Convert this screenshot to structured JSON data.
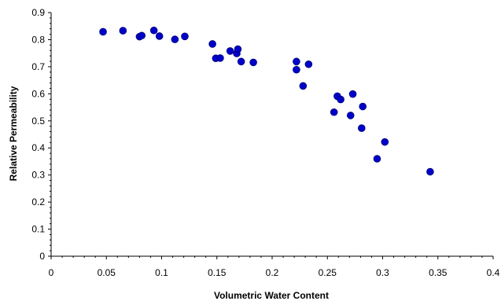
{
  "chart_data": {
    "type": "scatter",
    "title": "",
    "xlabel": "Volumetric Water Content",
    "ylabel": "Relative Permeability",
    "xlim": [
      0,
      0.4
    ],
    "ylim": [
      0,
      0.9
    ],
    "x_ticks": [
      0,
      0.05,
      0.1,
      0.15,
      0.2,
      0.25,
      0.3,
      0.35,
      0.4
    ],
    "x_tick_labels": [
      "0",
      "0.05",
      "0.1",
      "0.15",
      "0.2",
      "0.25",
      "0.3",
      "0.35",
      "0.4"
    ],
    "y_ticks": [
      0,
      0.1,
      0.2,
      0.3,
      0.4,
      0.5,
      0.6,
      0.7,
      0.8,
      0.9
    ],
    "y_tick_labels": [
      "0",
      "0.1",
      "0.2",
      "0.3",
      "0.4",
      "0.5",
      "0.6",
      "0.7",
      "0.8",
      "0.9"
    ],
    "grid": false,
    "legend": "none",
    "marker_color": "#0000cc",
    "marker_edge_color": "#000080",
    "series": [
      {
        "points": [
          [
            0.047,
            0.829
          ],
          [
            0.065,
            0.833
          ],
          [
            0.08,
            0.811
          ],
          [
            0.082,
            0.815
          ],
          [
            0.093,
            0.834
          ],
          [
            0.098,
            0.813
          ],
          [
            0.112,
            0.801
          ],
          [
            0.121,
            0.812
          ],
          [
            0.146,
            0.784
          ],
          [
            0.149,
            0.731
          ],
          [
            0.153,
            0.732
          ],
          [
            0.162,
            0.758
          ],
          [
            0.168,
            0.749
          ],
          [
            0.169,
            0.765
          ],
          [
            0.172,
            0.719
          ],
          [
            0.183,
            0.716
          ],
          [
            0.222,
            0.719
          ],
          [
            0.222,
            0.689
          ],
          [
            0.228,
            0.629
          ],
          [
            0.233,
            0.709
          ],
          [
            0.256,
            0.532
          ],
          [
            0.259,
            0.591
          ],
          [
            0.262,
            0.579
          ],
          [
            0.271,
            0.52
          ],
          [
            0.273,
            0.599
          ],
          [
            0.281,
            0.473
          ],
          [
            0.282,
            0.553
          ],
          [
            0.295,
            0.36
          ],
          [
            0.302,
            0.422
          ],
          [
            0.343,
            0.312
          ]
        ]
      }
    ]
  }
}
